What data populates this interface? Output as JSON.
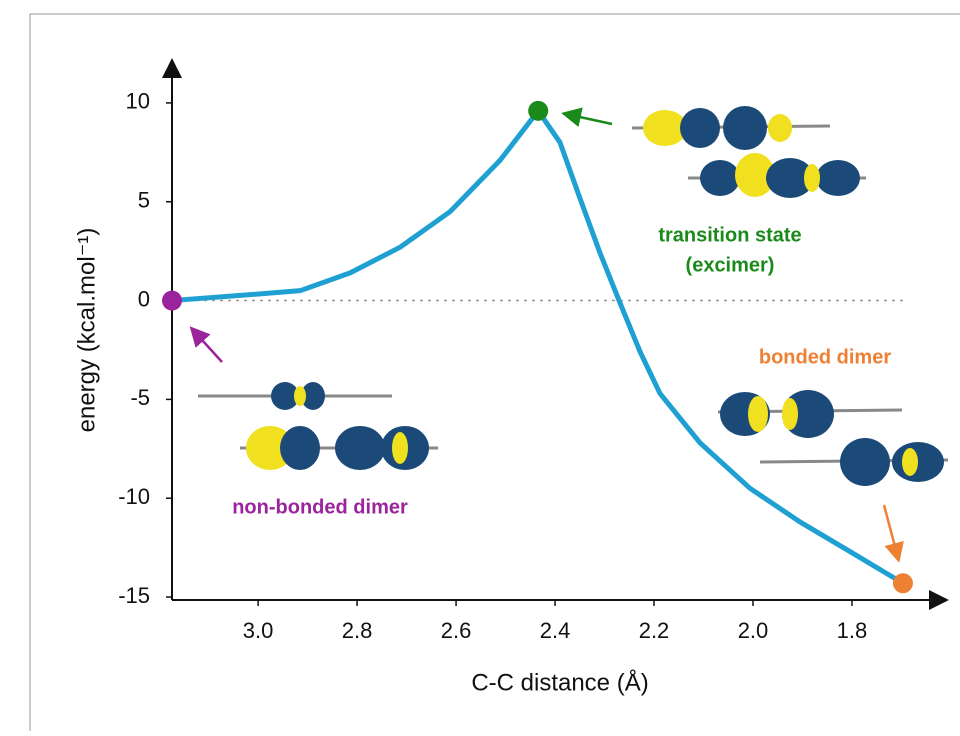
{
  "chart_data": {
    "type": "line",
    "x_label": "C-C distance (Å)",
    "y_label": "energy (kcal.mol⁻¹)",
    "xlim": [
      3.174,
      1.612
    ],
    "ylim": [
      -15.15,
      12.07
    ],
    "xticks": [
      {
        "value": 3.0,
        "label": "3.0"
      },
      2.8,
      2.6,
      2.4,
      2.2,
      {
        "value": 2.0,
        "label": "2.0"
      },
      1.8
    ],
    "yticks": [
      10,
      5,
      0,
      -5,
      -10,
      -15
    ],
    "reference_line": 0,
    "series": [
      {
        "color": "#1ea0d2",
        "x": [
          3.174,
          3.016,
          2.915,
          2.814,
          2.713,
          2.612,
          2.511,
          2.434,
          2.39,
          2.35,
          2.309,
          2.269,
          2.228,
          2.188,
          2.107,
          2.006,
          1.905,
          1.804,
          1.697
        ],
        "values": [
          0,
          0.3,
          0.5,
          1.4,
          2.7,
          4.5,
          7.1,
          9.6,
          8.0,
          5.2,
          2.4,
          -0.1,
          -2.6,
          -4.7,
          -7.2,
          -9.5,
          -11.2,
          -12.7,
          -14.3
        ]
      }
    ],
    "markers": [
      {
        "label": [
          "non-bonded dimer"
        ],
        "x": 3.174,
        "y": 0,
        "color": "#9b239b"
      },
      {
        "label": [
          "transition state",
          "(excimer)"
        ],
        "x": 2.434,
        "y": 9.6,
        "color": "#1a8a1a"
      },
      {
        "label": [
          "bonded dimer"
        ],
        "x": 1.697,
        "y": -14.3,
        "color": "#ee8033"
      }
    ]
  }
}
